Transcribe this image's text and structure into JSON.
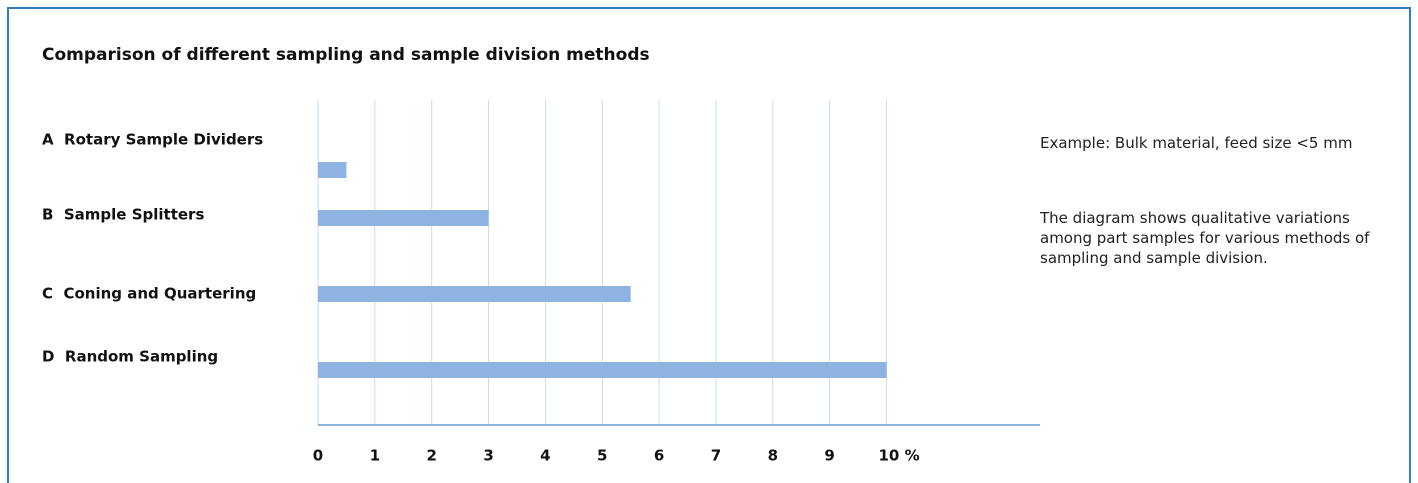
{
  "chart_data": {
    "type": "hbar",
    "title": "Comparison of different sampling and sample division methods",
    "categories": [
      "A  Rotary Sample Dividers",
      "B  Sample Splitters",
      "C  Coning and Quartering",
      "D  Random Sampling"
    ],
    "values": [
      0.5,
      3,
      5.5,
      10
    ],
    "color": "#8db3e2",
    "xlim": [
      0,
      12.7
    ],
    "xticks": [
      0,
      1,
      2,
      3,
      4,
      5,
      6,
      7,
      8,
      9,
      {
        "value": 10,
        "label": "10 %"
      }
    ],
    "grid": true,
    "annotations": [
      "Example: Bulk material, feed size <5 mm",
      "The diagram shows qualitative variations among part samples for various methods of sampling and sample division."
    ]
  }
}
